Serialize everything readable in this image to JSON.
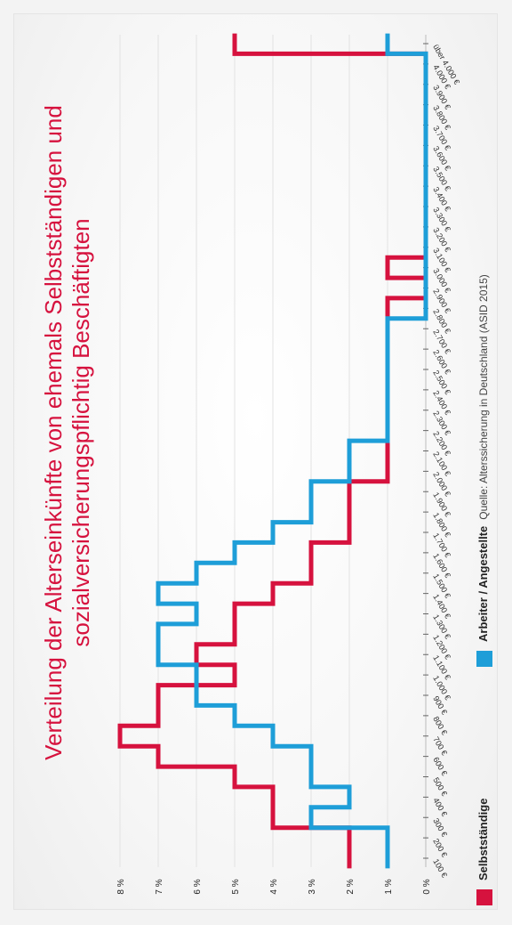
{
  "chart_data": {
    "type": "line",
    "title": "Verteilung der Alterseinkünfte von ehemals Selbstständigen und sozialversicherungspflichtig Beschäftigten",
    "title_lines": [
      "Verteilung der Alterseinkünfte von ehemals Selbstständigen und",
      "sozialversicherungspflichtig Beschäftigten"
    ],
    "source": "Quelle: Alterssicherung in Deutschland (ASID 2015)",
    "categories": [
      "100 €",
      "200 €",
      "300 €",
      "400 €",
      "500 €",
      "600 €",
      "700 €",
      "800 €",
      "900 €",
      "1.000 €",
      "1.100 €",
      "1.200 €",
      "1.300 €",
      "1.400 €",
      "1.500 €",
      "1.600 €",
      "1.700 €",
      "1.800 €",
      "1.900 €",
      "2.000 €",
      "2.100 €",
      "2.200 €",
      "2.300 €",
      "2.400 €",
      "2.500 €",
      "2.600 €",
      "2.700 €",
      "2.800 €",
      "2.900 €",
      "3.000 €",
      "3.100 €",
      "3.200 €",
      "3.300 €",
      "3.400 €",
      "3.500 €",
      "3.600 €",
      "3.700 €",
      "3.800 €",
      "3.900 €",
      "4.000 €",
      "über 4.000 €"
    ],
    "y_ticks": [
      "0 %",
      "1 %",
      "2 %",
      "3 %",
      "4 %",
      "5 %",
      "6 %",
      "7 %",
      "8 %"
    ],
    "ylim": [
      0,
      8
    ],
    "grid": true,
    "legend_position": "bottom-left",
    "series": [
      {
        "name": "Selbstständige",
        "color": "#d6123e",
        "values": [
          2,
          2,
          4,
          4,
          5,
          7,
          8,
          7,
          7,
          5,
          6,
          5,
          5,
          4,
          3,
          3,
          2,
          2,
          2,
          1,
          1,
          1,
          1,
          1,
          1,
          1,
          1,
          1,
          0,
          1,
          0,
          0,
          0,
          0,
          0,
          0,
          0,
          0,
          0,
          0,
          5
        ]
      },
      {
        "name": "Arbeiter / Angestellte",
        "color": "#1e9ed8",
        "values": [
          1,
          1,
          3,
          2,
          3,
          3,
          4,
          5,
          6,
          6,
          7,
          7,
          6,
          7,
          6,
          5,
          4,
          3,
          3,
          2,
          2,
          1,
          1,
          1,
          1,
          1,
          1,
          0,
          0,
          0,
          0,
          0,
          0,
          0,
          0,
          0,
          0,
          0,
          0,
          0,
          1
        ]
      }
    ]
  }
}
